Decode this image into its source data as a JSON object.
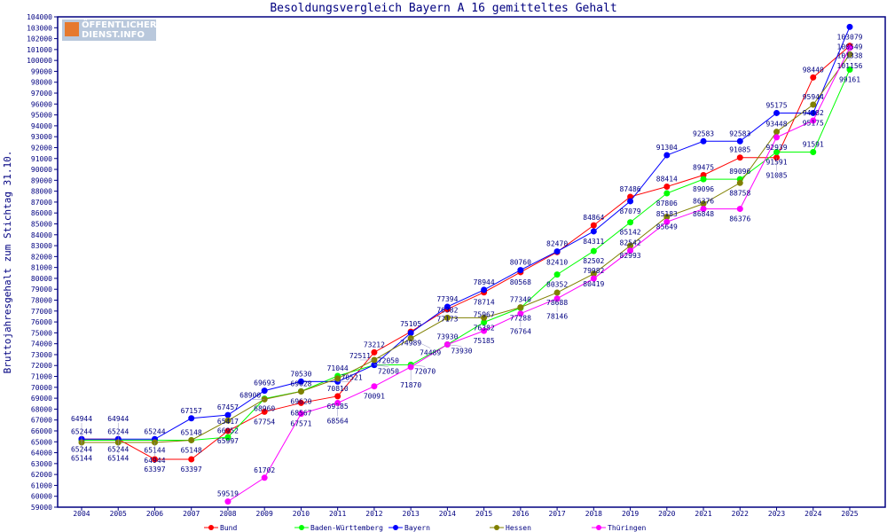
{
  "chart_data": {
    "type": "line",
    "title": "Besoldungsvergleich Bayern A 16 gemitteltes Gehalt",
    "xlabel": "",
    "ylabel": "Bruttojahresgehalt zum Stichtag 31.10.",
    "ylim": [
      59000,
      104000
    ],
    "ystep": 1000,
    "grid": false,
    "legend": "bottom",
    "categories": [
      "2004",
      "2005",
      "2006",
      "2007",
      "2008",
      "2009",
      "2010",
      "2011",
      "2012",
      "2013",
      "2014",
      "2015",
      "2016",
      "2017",
      "2018",
      "2019",
      "2020",
      "2021",
      "2022",
      "2023",
      "2024",
      "2025"
    ],
    "series": [
      {
        "name": "Bund",
        "color": "#ff0000",
        "values": [
          65244,
          65244,
          63397,
          63397,
          65997,
          67754,
          68567,
          69185,
          73212,
          75105,
          77173,
          78714,
          80568,
          82410,
          84864,
          87486,
          88414,
          89475,
          91085,
          91085,
          98440,
          101338
        ]
      },
      {
        "name": "Baden-Württemberg",
        "color": "#00ff00",
        "values": [
          65144,
          65144,
          65144,
          65148,
          65417,
          68960,
          69628,
          71044,
          72050,
          72070,
          73930,
          75967,
          77288,
          80352,
          82502,
          85142,
          87806,
          89096,
          89096,
          91591,
          91591,
          99161
        ]
      },
      {
        "name": "Bayern",
        "color": "#0000ff",
        "values": [
          65244,
          65244,
          65244,
          67157,
          67457,
          69693,
          70530,
          70521,
          72050,
          74989,
          77394,
          78944,
          80760,
          82470,
          84311,
          87079,
          91304,
          92583,
          92583,
          95175,
          95175,
          103079
        ]
      },
      {
        "name": "Hessen",
        "color": "#808000",
        "values": [
          64944,
          64944,
          64944,
          65148,
          66952,
          68900,
          69620,
          70810,
          72511,
          74489,
          76382,
          76382,
          77340,
          78688,
          80419,
          82993,
          85649,
          86848,
          88758,
          93448,
          95944,
          100549
        ]
      },
      {
        "name": "Thüringen",
        "color": "#ff00ff",
        "values": [
          null,
          null,
          null,
          null,
          59519,
          61702,
          67571,
          68564,
          70091,
          71870,
          73930,
          75185,
          76764,
          78146,
          79982,
          82542,
          85183,
          86376,
          86376,
          92939,
          94482,
          101156
        ]
      }
    ]
  },
  "logo": {
    "line1": "ÖFFENTLICHER",
    "line2": "DIENST.INFO"
  }
}
